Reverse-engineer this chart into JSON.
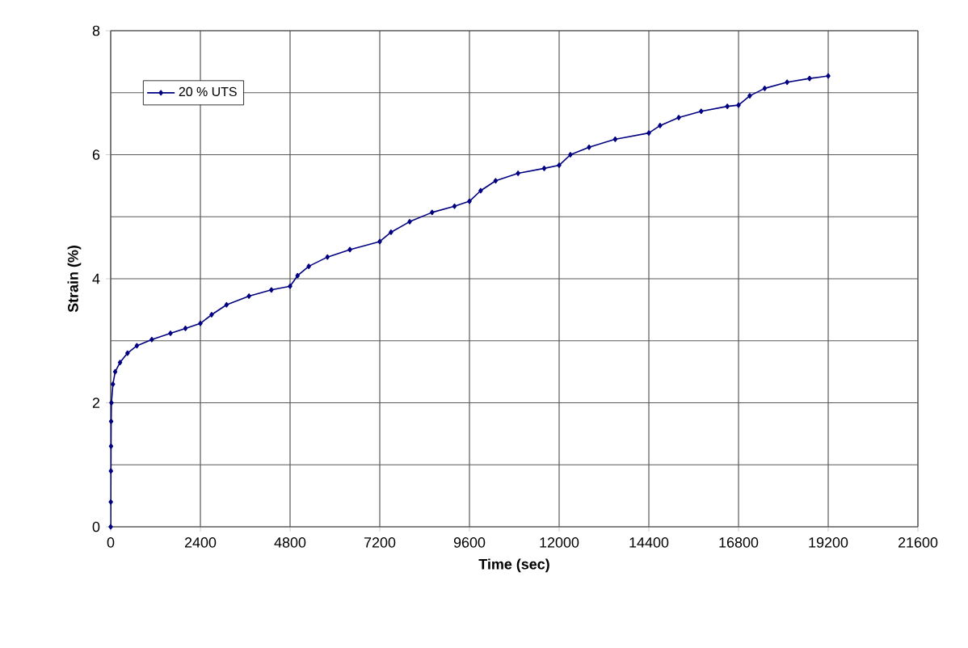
{
  "chart_data": {
    "type": "line",
    "xlabel": "Time (sec)",
    "ylabel": "Strain (%)",
    "xlim": [
      0,
      21600
    ],
    "xticks": [
      0,
      2400,
      4800,
      7200,
      9600,
      12000,
      14400,
      16800,
      19200,
      21600
    ],
    "ylim": [
      0,
      8
    ],
    "yticks": [
      0,
      2,
      4,
      6,
      8
    ],
    "grid": true,
    "legend": "top left",
    "marker": "diamond",
    "line_style": "solid",
    "series": [
      {
        "name": "20 % UTS",
        "color": "#000080",
        "x": [
          0,
          3,
          6,
          9,
          12,
          20,
          60,
          120,
          250,
          450,
          700,
          1100,
          1600,
          2000,
          2400,
          2700,
          3100,
          3700,
          4300,
          4800,
          5000,
          5300,
          5800,
          6400,
          7200,
          7500,
          8000,
          8600,
          9200,
          9600,
          9900,
          10300,
          10900,
          11600,
          12000,
          12300,
          12800,
          13500,
          14400,
          14700,
          15200,
          15800,
          16500,
          16800,
          17100,
          17500,
          18100,
          18700,
          19200
        ],
        "values": [
          0,
          0.4,
          0.9,
          1.3,
          1.7,
          2.0,
          2.3,
          2.5,
          2.65,
          2.8,
          2.92,
          3.02,
          3.12,
          3.2,
          3.28,
          3.42,
          3.58,
          3.72,
          3.82,
          3.88,
          4.05,
          4.2,
          4.35,
          4.47,
          4.6,
          4.75,
          4.92,
          5.07,
          5.17,
          5.25,
          5.42,
          5.58,
          5.7,
          5.78,
          5.83,
          6.0,
          6.12,
          6.25,
          6.35,
          6.47,
          6.6,
          6.7,
          6.78,
          6.8,
          6.95,
          7.07,
          7.17,
          7.23,
          7.27
        ]
      }
    ]
  }
}
